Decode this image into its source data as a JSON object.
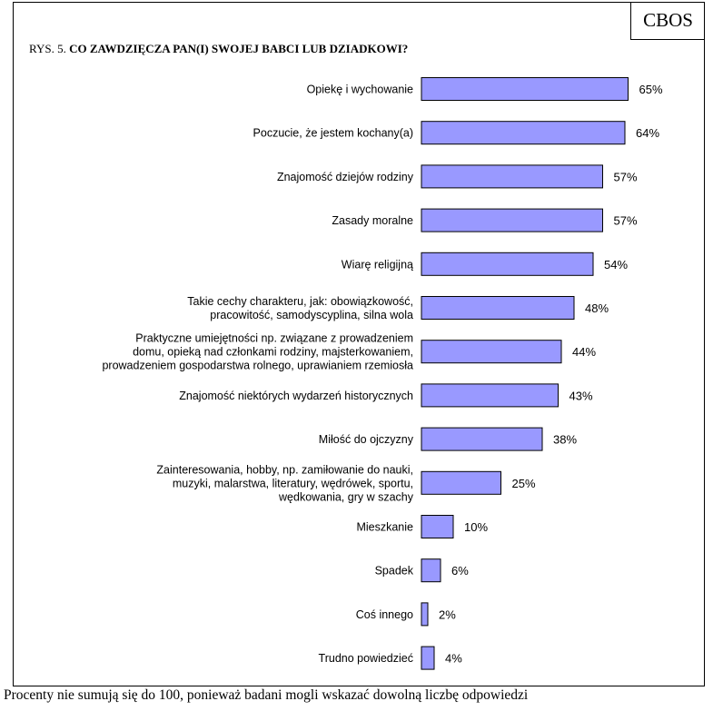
{
  "header": {
    "logo": "CBOS",
    "figure_prefix": "RYS. 5.",
    "figure_title": "CO ZAWDZIĘCZA PAN(I) SWOJEJ BABCI LUB DZIADKOWI?"
  },
  "footnote": "Procenty nie sumują się do 100, ponieważ badani mogli wskazać dowolną liczbę odpowiedzi",
  "colors": {
    "bar_fill": "#9999ff",
    "bar_stroke": "#000000"
  },
  "chart_data": {
    "type": "bar",
    "orientation": "horizontal",
    "title": "CO ZAWDZIĘCZA PAN(I) SWOJEJ BABCI LUB DZIADKOWI?",
    "xlabel": "",
    "ylabel": "",
    "xlim": [
      0,
      100
    ],
    "grid": false,
    "categories": [
      [
        "Opiekę i wychowanie"
      ],
      [
        "Poczucie, że jestem kochany(a)"
      ],
      [
        "Znajomość dziejów rodziny"
      ],
      [
        "Zasady moralne"
      ],
      [
        "Wiarę religijną"
      ],
      [
        "Takie cechy charakteru, jak: obowiązkowość,",
        "pracowitość, samodyscyplina, silna wola"
      ],
      [
        "Praktyczne umiejętności np. związane z prowadzeniem",
        "domu, opieką nad członkami rodziny, majsterkowaniem,",
        "prowadzeniem gospodarstwa rolnego, uprawianiem rzemiosła"
      ],
      [
        "Znajomość niektórych wydarzeń historycznych"
      ],
      [
        "Miłość do ojczyzny"
      ],
      [
        "Zainteresowania, hobby, np. zamiłowanie do nauki,",
        "muzyki, malarstwa, literatury, wędrówek, sportu,",
        "wędkowania, gry w szachy"
      ],
      [
        "Mieszkanie"
      ],
      [
        "Spadek"
      ],
      [
        "Coś innego"
      ],
      [
        "Trudno powiedzieć"
      ]
    ],
    "values": [
      65,
      64,
      57,
      57,
      54,
      48,
      44,
      43,
      38,
      25,
      10,
      6,
      2,
      4
    ],
    "value_labels": [
      "65%",
      "64%",
      "57%",
      "57%",
      "54%",
      "48%",
      "44%",
      "43%",
      "38%",
      "25%",
      "10%",
      "6%",
      "2%",
      "4%"
    ]
  }
}
